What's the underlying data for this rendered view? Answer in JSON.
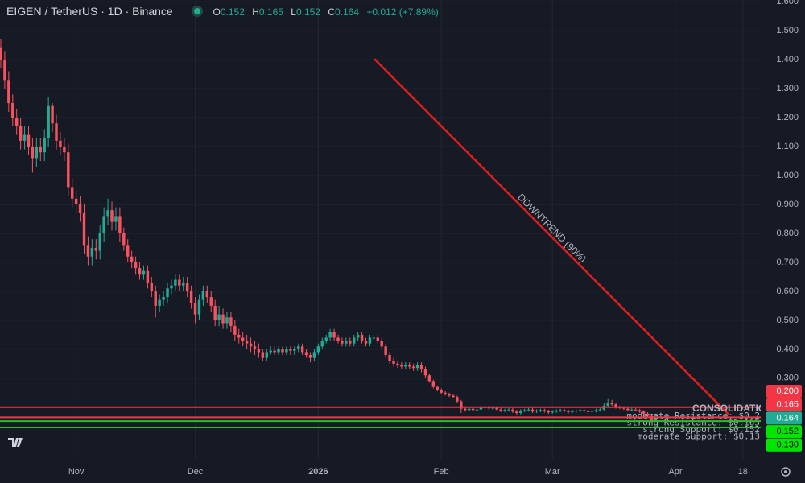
{
  "chart_data": {
    "type": "candlestick",
    "title": "EIGEN / TetherUS · 1D · Binance",
    "ohlc_labels": [
      "O",
      "H",
      "L",
      "C"
    ],
    "change_label": "+0.012 (+7.89%)",
    "xlim": [
      -0.2,
      191.5
    ],
    "ylim": [
      0.016,
      1.606
    ],
    "xticks": [
      {
        "value": 19,
        "label": "Nov"
      },
      {
        "value": 49,
        "label": "Dec"
      },
      {
        "value": 80,
        "label": "2026"
      },
      {
        "value": 111,
        "label": "Feb"
      },
      {
        "value": 139,
        "label": "Mar"
      },
      {
        "value": 170,
        "label": "Apr"
      },
      {
        "value": 187,
        "label": "18"
      }
    ],
    "yticks": [
      {
        "value": 0.3,
        "label": "0.300"
      },
      {
        "value": 0.4,
        "label": "0.400"
      },
      {
        "value": 0.5,
        "label": "0.500"
      },
      {
        "value": 0.6,
        "label": "0.600"
      },
      {
        "value": 0.7,
        "label": "0.700"
      },
      {
        "value": 0.8,
        "label": "0.800"
      },
      {
        "value": 0.9,
        "label": "0.900"
      },
      {
        "value": 1.0,
        "label": "1.000"
      },
      {
        "value": 1.1,
        "label": "1.100"
      },
      {
        "value": 1.2,
        "label": "1.200"
      },
      {
        "value": 1.3,
        "label": "1.300"
      },
      {
        "value": 1.4,
        "label": "1.400"
      },
      {
        "value": 1.5,
        "label": "1.500"
      },
      {
        "value": 1.6,
        "label": "1.600"
      }
    ],
    "grid": true,
    "series": [
      {
        "up_color": "#22ab94",
        "down_color": "#f7525f",
        "open": [
          1.44,
          1.4,
          1.33,
          1.25,
          1.2,
          1.17,
          1.12,
          1.14,
          1.1,
          1.06,
          1.1,
          1.08,
          1.13,
          1.24,
          1.18,
          1.12,
          1.1,
          1.08,
          0.96,
          0.92,
          0.9,
          0.87,
          0.76,
          0.72,
          0.75,
          0.74,
          0.8,
          0.86,
          0.88,
          0.84,
          0.86,
          0.8,
          0.76,
          0.72,
          0.7,
          0.68,
          0.66,
          0.67,
          0.63,
          0.6,
          0.55,
          0.57,
          0.58,
          0.61,
          0.62,
          0.64,
          0.62,
          0.63,
          0.6,
          0.56,
          0.52,
          0.57,
          0.6,
          0.58,
          0.55,
          0.5,
          0.52,
          0.49,
          0.51,
          0.48,
          0.45,
          0.44,
          0.43,
          0.42,
          0.41,
          0.4,
          0.39,
          0.37,
          0.39,
          0.395,
          0.39,
          0.4,
          0.39,
          0.4,
          0.395,
          0.4,
          0.41,
          0.39,
          0.38,
          0.37,
          0.39,
          0.41,
          0.43,
          0.44,
          0.46,
          0.44,
          0.43,
          0.42,
          0.43,
          0.42,
          0.44,
          0.45,
          0.43,
          0.42,
          0.44,
          0.44,
          0.43,
          0.41,
          0.38,
          0.36,
          0.35,
          0.345,
          0.34,
          0.345,
          0.34,
          0.335,
          0.345,
          0.33,
          0.31,
          0.29,
          0.27,
          0.26,
          0.25,
          0.245,
          0.24,
          0.235,
          0.22,
          0.195,
          0.19,
          0.195,
          0.19,
          0.192,
          0.198,
          0.2,
          0.196,
          0.198,
          0.192,
          0.188,
          0.19,
          0.192,
          0.185,
          0.18,
          0.188,
          0.19,
          0.192,
          0.185,
          0.188,
          0.19,
          0.186,
          0.182,
          0.185,
          0.188,
          0.19,
          0.187,
          0.183,
          0.186,
          0.188,
          0.19,
          0.186,
          0.184,
          0.187,
          0.19,
          0.192,
          0.205,
          0.215,
          0.21,
          0.2,
          0.198,
          0.195,
          0.19,
          0.192,
          0.19,
          0.185,
          0.178,
          0.17,
          0.152
        ],
        "high": [
          1.47,
          1.43,
          1.36,
          1.28,
          1.23,
          1.2,
          1.17,
          1.17,
          1.13,
          1.13,
          1.13,
          1.16,
          1.27,
          1.25,
          1.21,
          1.15,
          1.13,
          1.11,
          0.99,
          0.95,
          0.93,
          0.9,
          0.79,
          0.78,
          0.78,
          0.83,
          0.89,
          0.92,
          0.91,
          0.89,
          0.89,
          0.82,
          0.78,
          0.74,
          0.72,
          0.7,
          0.69,
          0.69,
          0.65,
          0.62,
          0.59,
          0.6,
          0.63,
          0.64,
          0.66,
          0.66,
          0.65,
          0.65,
          0.62,
          0.58,
          0.59,
          0.62,
          0.62,
          0.6,
          0.57,
          0.55,
          0.54,
          0.53,
          0.53,
          0.5,
          0.47,
          0.46,
          0.45,
          0.44,
          0.43,
          0.42,
          0.4,
          0.4,
          0.41,
          0.41,
          0.41,
          0.41,
          0.41,
          0.41,
          0.41,
          0.42,
          0.42,
          0.4,
          0.39,
          0.4,
          0.42,
          0.44,
          0.45,
          0.47,
          0.47,
          0.45,
          0.44,
          0.44,
          0.44,
          0.45,
          0.46,
          0.46,
          0.44,
          0.45,
          0.45,
          0.45,
          0.44,
          0.42,
          0.39,
          0.37,
          0.36,
          0.355,
          0.355,
          0.355,
          0.35,
          0.355,
          0.355,
          0.34,
          0.315,
          0.295,
          0.275,
          0.265,
          0.255,
          0.25,
          0.245,
          0.24,
          0.225,
          0.2,
          0.2,
          0.2,
          0.197,
          0.203,
          0.206,
          0.205,
          0.203,
          0.203,
          0.197,
          0.195,
          0.197,
          0.197,
          0.19,
          0.193,
          0.195,
          0.197,
          0.197,
          0.193,
          0.195,
          0.195,
          0.191,
          0.19,
          0.193,
          0.195,
          0.195,
          0.192,
          0.191,
          0.193,
          0.195,
          0.195,
          0.191,
          0.192,
          0.195,
          0.197,
          0.215,
          0.228,
          0.225,
          0.215,
          0.205,
          0.203,
          0.2,
          0.197,
          0.197,
          0.195,
          0.19,
          0.183,
          0.175,
          0.165
        ],
        "low": [
          1.37,
          1.3,
          1.22,
          1.17,
          1.14,
          1.09,
          1.09,
          1.07,
          1.01,
          1.03,
          1.05,
          1.05,
          1.1,
          1.15,
          1.09,
          1.07,
          1.05,
          0.93,
          0.89,
          0.87,
          0.84,
          0.73,
          0.69,
          0.69,
          0.71,
          0.71,
          0.77,
          0.83,
          0.81,
          0.81,
          0.77,
          0.74,
          0.7,
          0.68,
          0.66,
          0.64,
          0.64,
          0.61,
          0.58,
          0.51,
          0.53,
          0.55,
          0.56,
          0.59,
          0.6,
          0.6,
          0.6,
          0.58,
          0.54,
          0.49,
          0.5,
          0.55,
          0.56,
          0.53,
          0.48,
          0.48,
          0.47,
          0.47,
          0.46,
          0.43,
          0.42,
          0.41,
          0.4,
          0.39,
          0.38,
          0.37,
          0.36,
          0.36,
          0.38,
          0.38,
          0.38,
          0.38,
          0.38,
          0.38,
          0.38,
          0.39,
          0.38,
          0.37,
          0.355,
          0.36,
          0.38,
          0.4,
          0.42,
          0.43,
          0.43,
          0.42,
          0.41,
          0.41,
          0.41,
          0.41,
          0.43,
          0.42,
          0.41,
          0.41,
          0.43,
          0.42,
          0.4,
          0.37,
          0.35,
          0.34,
          0.335,
          0.33,
          0.33,
          0.33,
          0.325,
          0.325,
          0.32,
          0.3,
          0.285,
          0.265,
          0.255,
          0.245,
          0.24,
          0.235,
          0.23,
          0.215,
          0.18,
          0.185,
          0.185,
          0.185,
          0.185,
          0.188,
          0.193,
          0.19,
          0.19,
          0.187,
          0.183,
          0.183,
          0.185,
          0.18,
          0.175,
          0.175,
          0.183,
          0.185,
          0.18,
          0.18,
          0.183,
          0.181,
          0.177,
          0.177,
          0.18,
          0.183,
          0.182,
          0.178,
          0.178,
          0.181,
          0.183,
          0.181,
          0.179,
          0.179,
          0.182,
          0.185,
          0.187,
          0.2,
          0.205,
          0.195,
          0.193,
          0.19,
          0.185,
          0.185,
          0.185,
          0.18,
          0.173,
          0.165,
          0.148,
          0.152
        ],
        "close": [
          1.4,
          1.33,
          1.25,
          1.2,
          1.17,
          1.12,
          1.14,
          1.1,
          1.06,
          1.1,
          1.08,
          1.13,
          1.24,
          1.18,
          1.12,
          1.1,
          1.08,
          0.96,
          0.92,
          0.9,
          0.87,
          0.76,
          0.72,
          0.75,
          0.74,
          0.8,
          0.86,
          0.88,
          0.84,
          0.86,
          0.8,
          0.76,
          0.72,
          0.7,
          0.68,
          0.66,
          0.67,
          0.63,
          0.6,
          0.55,
          0.57,
          0.58,
          0.61,
          0.62,
          0.64,
          0.62,
          0.63,
          0.6,
          0.56,
          0.52,
          0.57,
          0.6,
          0.58,
          0.55,
          0.5,
          0.52,
          0.49,
          0.51,
          0.48,
          0.45,
          0.44,
          0.43,
          0.42,
          0.41,
          0.4,
          0.39,
          0.37,
          0.39,
          0.395,
          0.39,
          0.4,
          0.39,
          0.4,
          0.395,
          0.4,
          0.41,
          0.39,
          0.38,
          0.37,
          0.39,
          0.41,
          0.43,
          0.44,
          0.46,
          0.44,
          0.43,
          0.42,
          0.43,
          0.42,
          0.44,
          0.45,
          0.43,
          0.42,
          0.44,
          0.44,
          0.43,
          0.41,
          0.38,
          0.36,
          0.35,
          0.345,
          0.34,
          0.345,
          0.34,
          0.335,
          0.345,
          0.33,
          0.31,
          0.29,
          0.27,
          0.26,
          0.25,
          0.245,
          0.24,
          0.235,
          0.22,
          0.195,
          0.19,
          0.195,
          0.19,
          0.192,
          0.198,
          0.2,
          0.196,
          0.198,
          0.192,
          0.188,
          0.19,
          0.192,
          0.185,
          0.18,
          0.188,
          0.19,
          0.192,
          0.185,
          0.188,
          0.19,
          0.186,
          0.182,
          0.185,
          0.188,
          0.19,
          0.187,
          0.183,
          0.186,
          0.188,
          0.19,
          0.186,
          0.184,
          0.187,
          0.19,
          0.192,
          0.205,
          0.215,
          0.21,
          0.2,
          0.198,
          0.195,
          0.19,
          0.192,
          0.19,
          0.185,
          0.178,
          0.17,
          0.152,
          0.164
        ],
        "last_value_label": "0.164"
      }
    ],
    "levels": [
      {
        "name": "moderate Resistance: $0.2",
        "value": 0.2,
        "value_label": "0.200",
        "color": "#f23645"
      },
      {
        "name": "strong Resistance: $0.165",
        "value": 0.165,
        "value_label": "0.165",
        "color": "#f23645"
      },
      {
        "name": "strong Support: $0.152",
        "value": 0.152,
        "value_label": "0.152",
        "color": "#22c322"
      },
      {
        "name": "moderate Support: $0.13",
        "value": 0.13,
        "value_label": "0.130",
        "color": "#22c322"
      }
    ],
    "trendline": {
      "label": "DOWNTREND (90%)",
      "start": [
        94.1,
        1.403
      ],
      "end": [
        183.4,
        0.175
      ],
      "color": "#e01e1e"
    },
    "annotations": [
      {
        "text": "CONSOLIDATION",
        "color": "#ffeb3b"
      }
    ]
  }
}
